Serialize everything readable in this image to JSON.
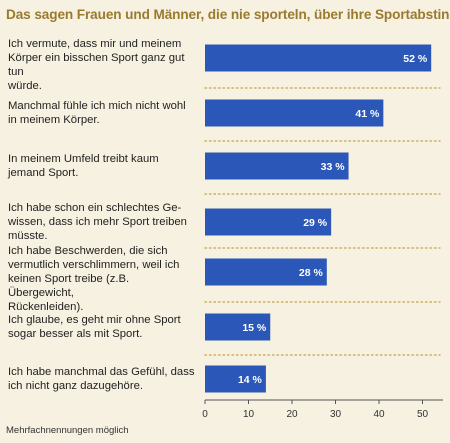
{
  "chart_data": {
    "type": "bar",
    "orientation": "horizontal",
    "title": "Das sagen Frauen und Männer, die nie sporteln, über ihre Sportabstinenz",
    "categories": [
      "Ich vermute, dass mir und meinem Körper ein bisschen Sport ganz gut tun würde.",
      "Manchmal fühle ich mich nicht wohl in meinem Körper.",
      "In meinem Umfeld treibt kaum jemand Sport.",
      "Ich habe schon ein schlechtes Gewissen, dass ich mehr Sport treiben müsste.",
      "Ich habe Beschwerden, die sich vermutlich verschlimmern, weil ich keinen Sport treibe (z.B. Übergewicht, Rückenleiden).",
      "Ich glaube, es geht mir ohne Sport sogar besser als mit Sport.",
      "Ich habe manchmal das Gefühl, dass ich nicht ganz dazugehöre."
    ],
    "category_lines": [
      [
        "Ich vermute, dass mir und meinem",
        "Körper ein bisschen Sport ganz gut tun",
        "würde."
      ],
      [
        "Manchmal fühle ich mich nicht wohl",
        "in meinem Körper."
      ],
      [
        "In meinem Umfeld treibt kaum",
        "jemand Sport."
      ],
      [
        "Ich habe schon ein schlechtes Ge-",
        "wissen, dass ich mehr Sport treiben",
        "müsste."
      ],
      [
        "Ich habe Beschwerden, die sich",
        "vermutlich verschlimmern, weil ich",
        "keinen Sport treibe (z.B. Übergewicht,",
        "Rückenleiden)."
      ],
      [
        "Ich glaube, es geht mir ohne Sport",
        "sogar besser als mit Sport."
      ],
      [
        "Ich habe manchmal das Gefühl, dass",
        "ich nicht ganz dazugehöre."
      ]
    ],
    "values": [
      52,
      41,
      33,
      29,
      28,
      15,
      14
    ],
    "value_labels": [
      "52 %",
      "41 %",
      "33 %",
      "29 %",
      "28 %",
      "15 %",
      "14 %"
    ],
    "xlim": [
      0,
      52
    ],
    "xticks": [
      "0",
      "10",
      "20",
      "30",
      "40",
      "50"
    ],
    "grid": false,
    "xlabel": "",
    "ylabel": "",
    "bar_color": "#2a57b8",
    "footnote": "Mehrfachnennungen möglich"
  },
  "colors": {
    "background": "#f6f1e0",
    "title": "#9a7a2e",
    "separator": "#c9a24a",
    "axis": "#555555"
  }
}
